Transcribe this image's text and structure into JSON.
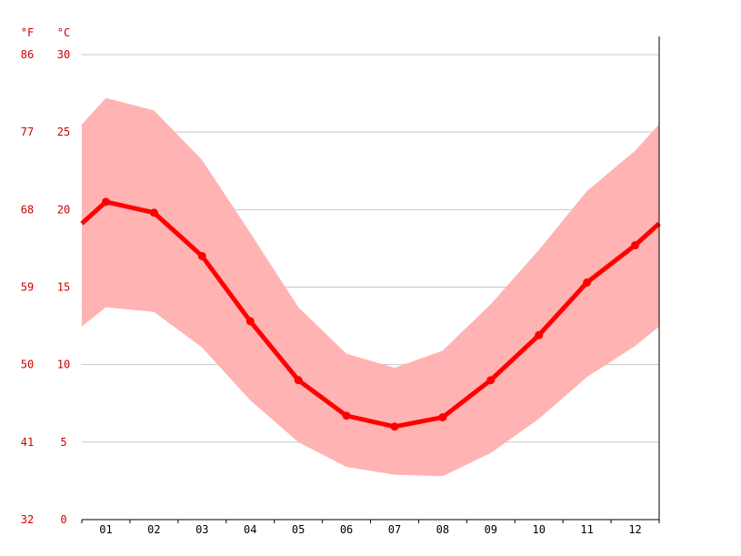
{
  "chart_data": {
    "type": "line",
    "title": "",
    "xlabel": "",
    "ylabel": "",
    "unit_labels": {
      "fahrenheit": "°F",
      "celsius": "°C"
    },
    "categories": [
      "01",
      "02",
      "03",
      "04",
      "05",
      "06",
      "07",
      "08",
      "09",
      "10",
      "11",
      "12"
    ],
    "ylim": [
      0,
      30
    ],
    "y_ticks_celsius": [
      "0",
      "5",
      "10",
      "15",
      "20",
      "25",
      "30"
    ],
    "y_ticks_fahrenheit": [
      "32",
      "41",
      "50",
      "59",
      "68",
      "77",
      "86"
    ],
    "grid": true,
    "series": [
      {
        "values": [
          20.5,
          19.8,
          17.0,
          12.8,
          9.0,
          6.7,
          6.0,
          6.6,
          9.0,
          11.9,
          15.3,
          17.7
        ]
      }
    ],
    "band": {
      "low": [
        13.7,
        13.4,
        11.1,
        7.7,
        5.0,
        3.4,
        2.9,
        2.8,
        4.3,
        6.5,
        9.2,
        11.2
      ],
      "high": [
        27.2,
        26.4,
        23.2,
        18.5,
        13.7,
        10.7,
        9.8,
        10.9,
        13.9,
        17.4,
        21.2,
        23.8
      ]
    },
    "colors": {
      "line": "#ff0000",
      "band": "#ffb3b3",
      "grid": "#c8c8c8",
      "axis": "#000000",
      "tick_label": "#cc0000"
    }
  }
}
